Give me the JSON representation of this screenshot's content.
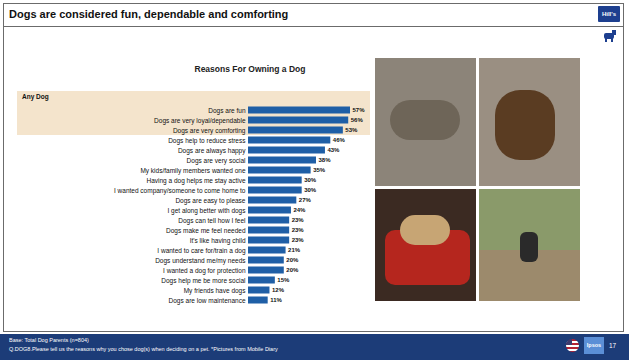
{
  "header": {
    "title": "Dogs are considered fun, dependable and comforting",
    "logo": "Hill's"
  },
  "chart_data": {
    "type": "bar",
    "orientation": "horizontal",
    "title": "Reasons For Owning a Dog",
    "annotations": [
      "Any Dog"
    ],
    "categories": [
      "Dogs are fun",
      "Dogs are very loyal/dependable",
      "Dogs are very comforting",
      "Dogs help to reduce stress",
      "Dogs are always happy",
      "Dogs are very social",
      "My kids/family members wanted one",
      "Having a dog helps me stay active",
      "I wanted company/someone to come home to",
      "Dogs are easy to please",
      "I get along better with dogs",
      "Dogs can tell how I feel",
      "Dogs make me feel needed",
      "It's like having child",
      "I wanted to care for/train a dog",
      "Dogs understand me/my needs",
      "I wanted a dog for protection",
      "Dogs help me be more social",
      "My friends have dogs",
      "Dogs are low maintenance"
    ],
    "values": [
      57,
      56,
      53,
      46,
      43,
      38,
      35,
      30,
      30,
      27,
      24,
      23,
      23,
      23,
      21,
      20,
      20,
      15,
      12,
      11
    ],
    "value_labels": [
      "57%",
      "56%",
      "53%",
      "46%",
      "43%",
      "38%",
      "35%",
      "30%",
      "30%",
      "27%",
      "24%",
      "23%",
      "23%",
      "23%",
      "21%",
      "20%",
      "20%",
      "15%",
      "12%",
      "11%"
    ],
    "color": "#1f5fa6",
    "data_labels": true,
    "tick_labels": "y"
  },
  "footer": {
    "base": "Base: Total Dog Parents (n=804)",
    "question": "Q.DOG8.Please tell us the reasons why you chose dog(s) when deciding on a pet. *Pictures from Mobile Diary",
    "logo": "Ipsos",
    "page": 17
  }
}
